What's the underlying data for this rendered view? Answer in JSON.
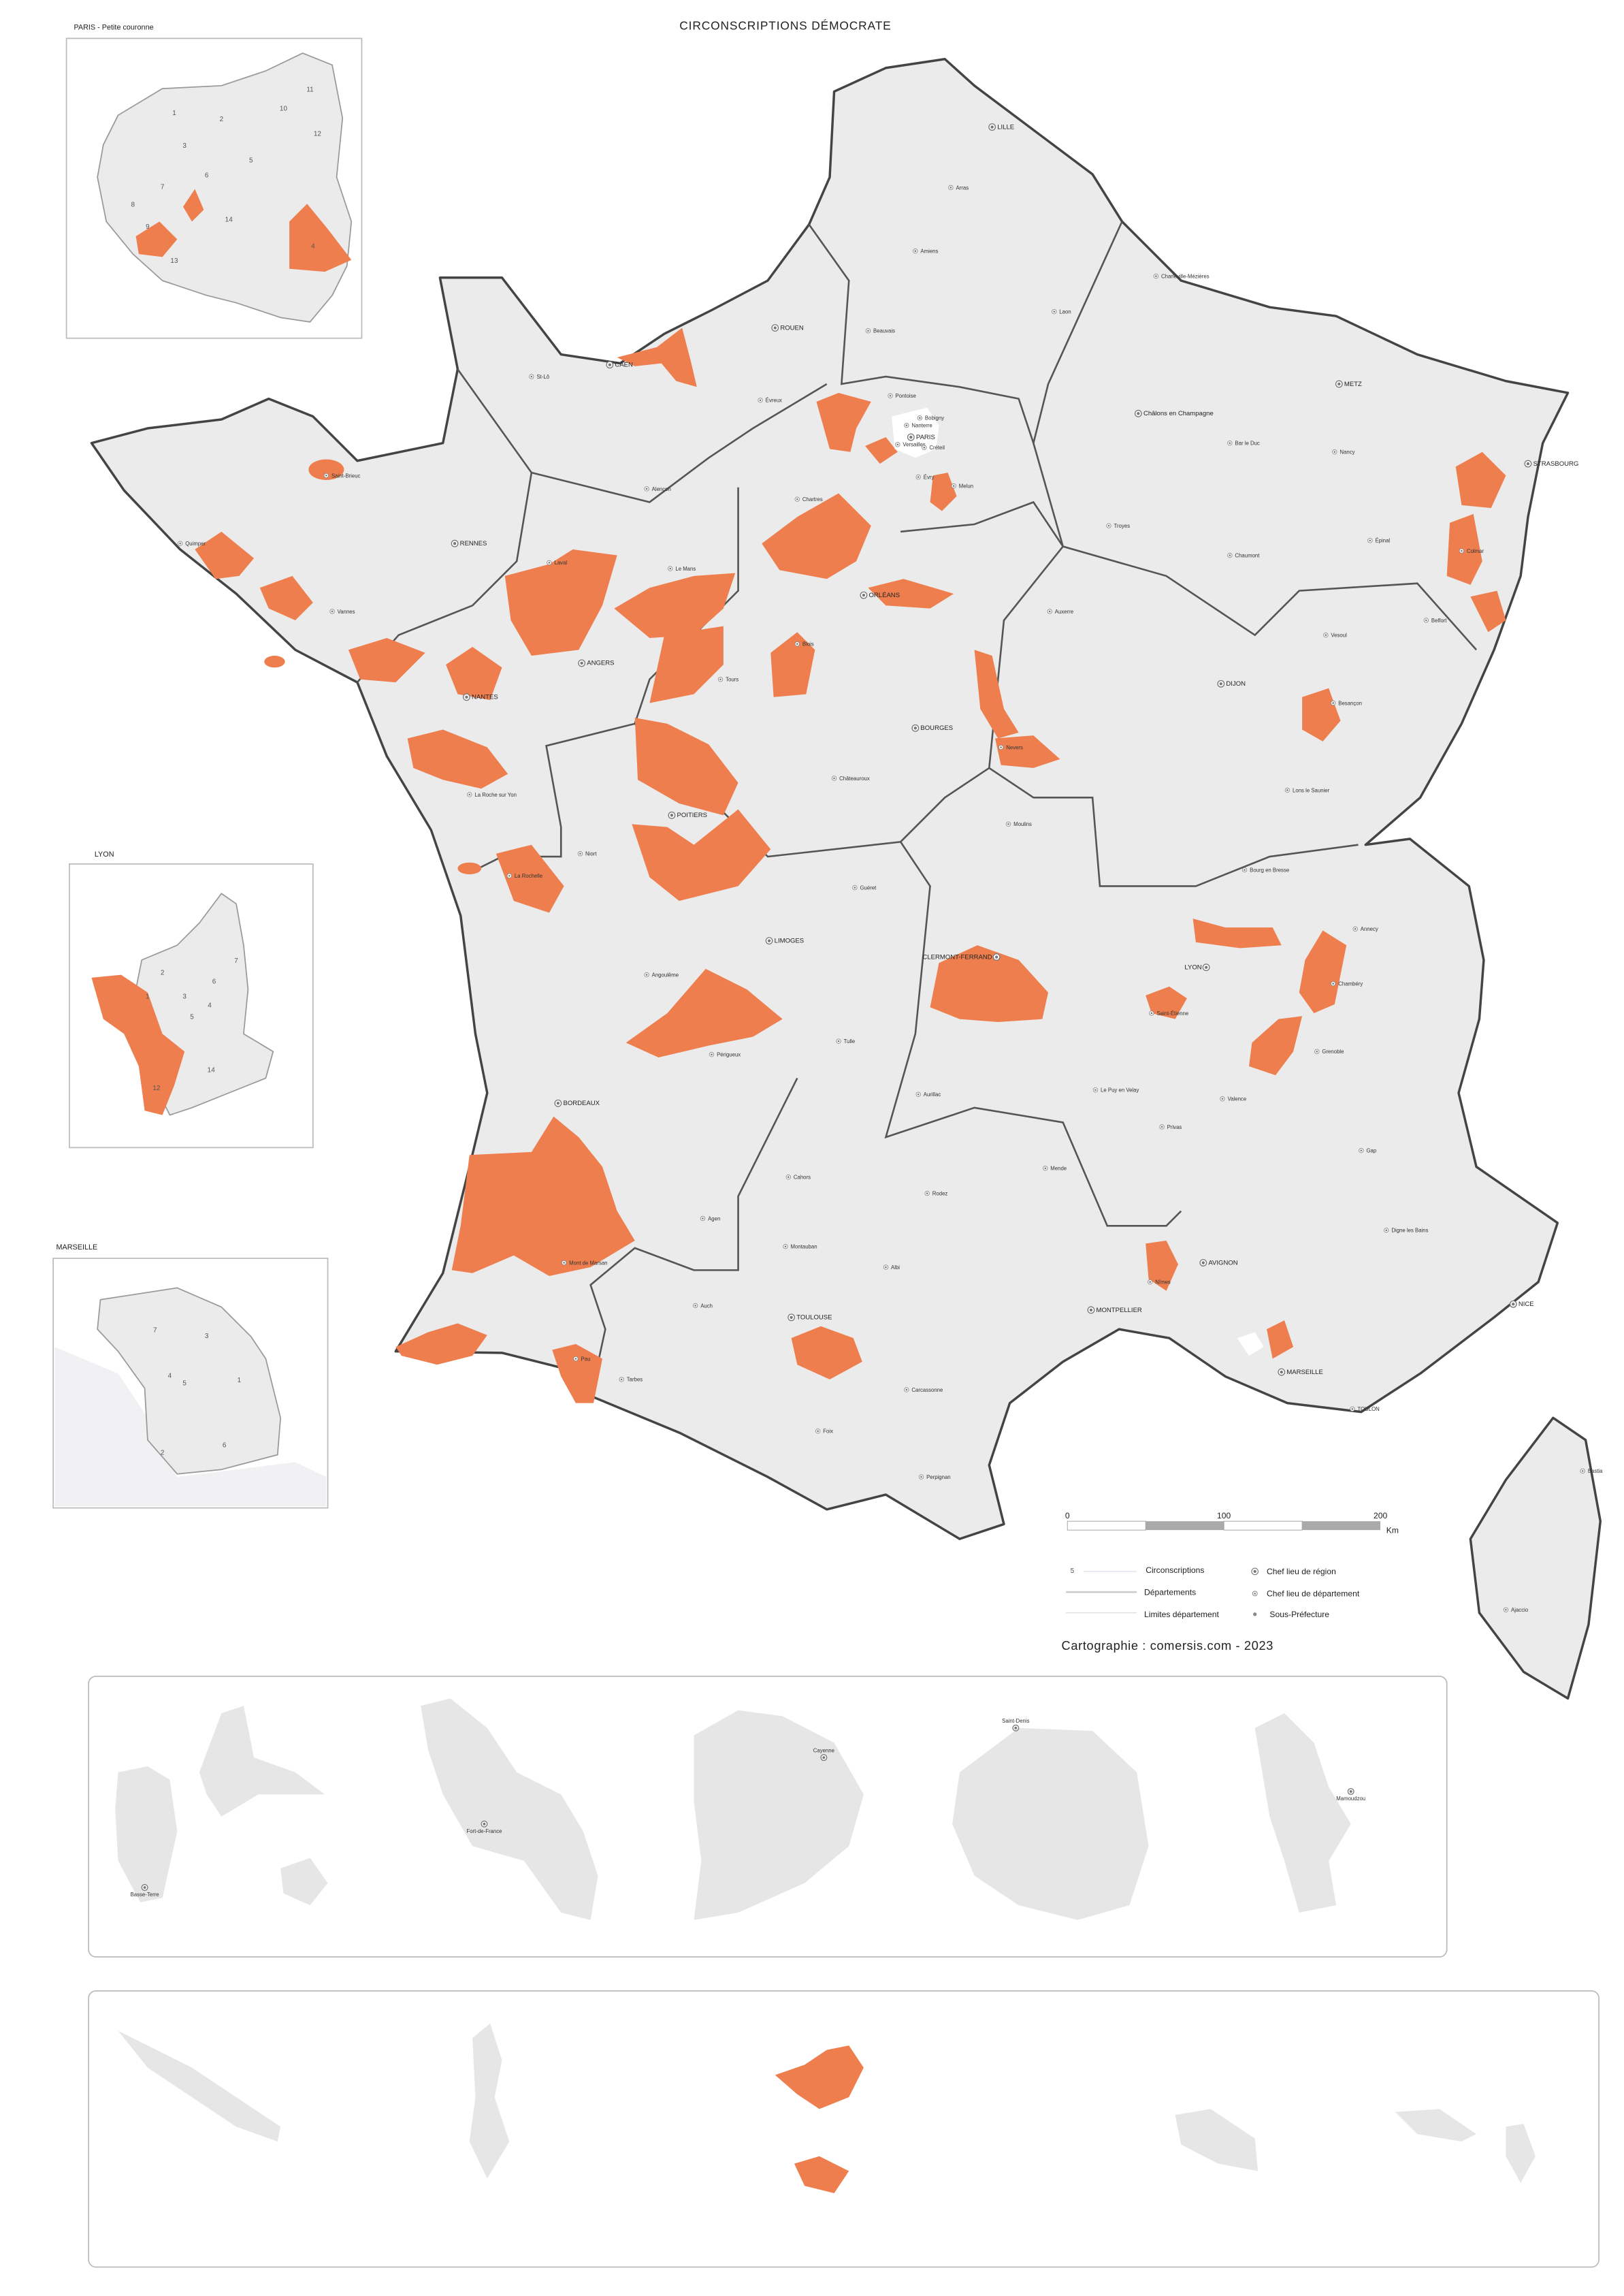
{
  "title": "CIRCONSCRIPTIONS DÉMOCRATE",
  "colors": {
    "highlight": "#ee7e4e",
    "land": "#ebebeb",
    "border": "#444444",
    "paris_white": "#ffffff"
  },
  "insets": {
    "paris": {
      "label": "PARIS - Petite couronne",
      "numbers": [
        "11",
        "10",
        "12",
        "1",
        "2",
        "3",
        "4",
        "5",
        "6",
        "7",
        "8",
        "9",
        "13",
        "14"
      ]
    },
    "lyon": {
      "label": "LYON",
      "numbers": [
        "7",
        "2",
        "6",
        "1",
        "3",
        "4",
        "5",
        "14",
        "12"
      ]
    },
    "marseille": {
      "label": "MARSEILLE",
      "numbers": [
        "7",
        "3",
        "4",
        "5",
        "1",
        "2",
        "6"
      ]
    }
  },
  "cities": [
    "LILLE",
    "Arras",
    "Amiens",
    "Charleville-Mézières",
    "ROUEN",
    "Beauvais",
    "Laon",
    "CAEN",
    "St-Lô",
    "Évreux",
    "Pontoise",
    "Bobigny",
    "Nanterre",
    "PARIS",
    "Versailles",
    "Créteil",
    "Évry",
    "Melun",
    "METZ",
    "Châlons en Champagne",
    "Bar le Duc",
    "Nancy",
    "STRASBOURG",
    "Épinal",
    "Colmar",
    "Chaumont",
    "Troyes",
    "Saint-Brieuc",
    "Quimper",
    "RENNES",
    "Vannes",
    "Alençon",
    "Le Mans",
    "Laval",
    "ANGERS",
    "NANTES",
    "Chartres",
    "ORLÉANS",
    "Blois",
    "Tours",
    "Auxerre",
    "Vesoul",
    "Belfort",
    "DIJON",
    "Besançon",
    "Nevers",
    "BOURGES",
    "Châteauroux",
    "Lons le Saunier",
    "La Roche sur Yon",
    "POITIERS",
    "Niort",
    "La Rochelle",
    "Guéret",
    "Moulins",
    "Bourg en Bresse",
    "LIMOGES",
    "Angoulême",
    "CLERMONT-FERRAND",
    "LYON",
    "Annecy",
    "Chambéry",
    "Saint-Étienne",
    "Périgueux",
    "Tulle",
    "Grenoble",
    "Le Puy en Velay",
    "Aurillac",
    "Valence",
    "Privas",
    "Gap",
    "BORDEAUX",
    "Mende",
    "Cahors",
    "Rodez",
    "Agen",
    "Digne les Bains",
    "Mont de Marsan",
    "Montauban",
    "AVIGNON",
    "Albi",
    "NICE",
    "Auch",
    "TOULOUSE",
    "MONTPELLIER",
    "Nîmes",
    "Pau",
    "Tarbes",
    "MARSEILLE",
    "TOULON",
    "Carcassonne",
    "Foix",
    "Perpignan",
    "Bastia",
    "Ajaccio"
  ],
  "overseas_cities": [
    "Basse-Terre",
    "Fort-de-France",
    "Cayenne",
    "Saint-Denis",
    "Mamoudzou"
  ],
  "scale": {
    "ticks": [
      "0",
      "100",
      "200"
    ],
    "unit": "Km"
  },
  "legend": {
    "lines": [
      {
        "sample": "5",
        "label": "Circonscriptions"
      },
      {
        "sample": "",
        "label": "Départements"
      },
      {
        "sample": "",
        "label": "Limites département"
      }
    ],
    "symbols": [
      {
        "icon": "double-circle-icon",
        "label": "Chef lieu de région"
      },
      {
        "icon": "dotted-circle-icon",
        "label": "Chef lieu de département"
      },
      {
        "icon": "dot-icon",
        "label": "Sous-Préfecture"
      }
    ]
  },
  "credit": "Cartographie : comersis.com - 2023"
}
